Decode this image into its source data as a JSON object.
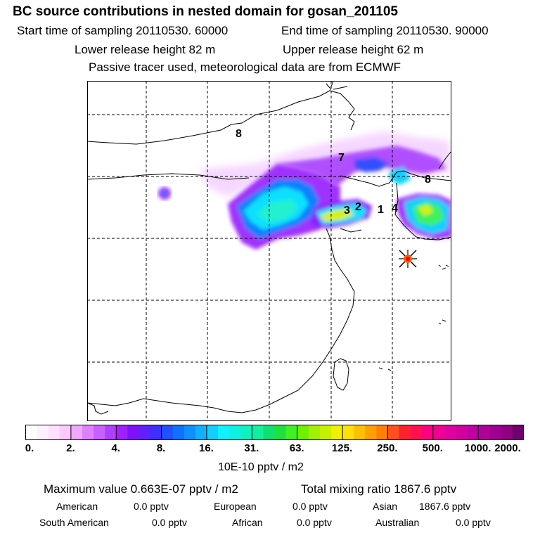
{
  "header": {
    "title": "BC  source contributions in nested domain for gosan_201105",
    "start_label": "Start time of sampling 20110530. 60000",
    "end_label": "End time of sampling 20110530. 90000",
    "lower_label": "Lower release height   82 m",
    "upper_label": "Upper release height   62 m",
    "note": "Passive tracer used, meteorological data are from ECMWF"
  },
  "chart_data": {
    "type": "heatmap",
    "title": "BC  source contributions in nested domain for gosan_201105",
    "region_labels": [
      "8",
      "7",
      "8",
      "3",
      "2",
      "1",
      "4"
    ],
    "colorbar": {
      "tick_labels": [
        "0.",
        "2.",
        "4.",
        "8.",
        "16.",
        "31.",
        "63.",
        "125.",
        "250.",
        "500.",
        "1000.",
        "2000."
      ],
      "colors": [
        "#ffffff",
        "#fff0ff",
        "#ffe0ff",
        "#ffc8ff",
        "#f0a8ff",
        "#e080ff",
        "#c860ff",
        "#b040ff",
        "#a020ff",
        "#8010ff",
        "#6020ff",
        "#4030ff",
        "#2050ff",
        "#1070ff",
        "#1090ff",
        "#10b0ff",
        "#10d0ff",
        "#10f0ff",
        "#10f0e0",
        "#10f0c0",
        "#10f0a0",
        "#10e070",
        "#20e040",
        "#40f020",
        "#70f000",
        "#a0f000",
        "#c8f000",
        "#f0f000",
        "#ffe000",
        "#ffc000",
        "#ffa000",
        "#ff8000",
        "#ff5020",
        "#ff2030",
        "#ff1050",
        "#ff0080",
        "#f00090",
        "#e000a0",
        "#d000a0",
        "#c000a0",
        "#b00098",
        "#a00090",
        "#900080",
        "#700070"
      ],
      "unit_label": "10E-10 pptv / m2"
    },
    "receptor": "gosan"
  },
  "footer": {
    "max_value": "Maximum value  0.663E-07 pptv / m2",
    "total_mixing": "Total mixing ratio     1867.6 pptv",
    "rows": [
      [
        {
          "label": "American",
          "value": "0.0 pptv"
        },
        {
          "label": "European",
          "value": "0.0 pptv"
        },
        {
          "label": "Asian",
          "value": "1867.6 pptv"
        }
      ],
      [
        {
          "label": "South American",
          "value": "0.0 pptv"
        },
        {
          "label": "African",
          "value": "0.0 pptv"
        },
        {
          "label": "Australian",
          "value": "0.0 pptv"
        }
      ]
    ]
  }
}
